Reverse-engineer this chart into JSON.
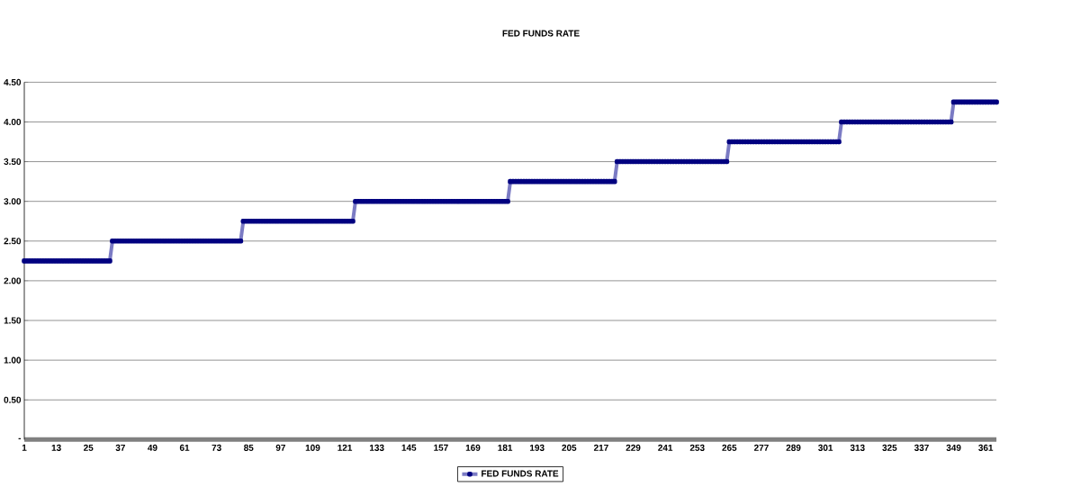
{
  "chart_data": {
    "type": "line",
    "title": "FED FUNDS RATE",
    "x": [
      1,
      2,
      3,
      4,
      5,
      6,
      7,
      8,
      9,
      10,
      11,
      12,
      13,
      14,
      15,
      16,
      17,
      18,
      19,
      20,
      21,
      22,
      23,
      24,
      25,
      26,
      27,
      28,
      29,
      30,
      31,
      32,
      33,
      34,
      35,
      36,
      37,
      38,
      39,
      40,
      41,
      42,
      43,
      44,
      45,
      46,
      47,
      48,
      49,
      50,
      51,
      52,
      53,
      54,
      55,
      56,
      57,
      58,
      59,
      60,
      61,
      62,
      63,
      64,
      65,
      66,
      67,
      68,
      69,
      70,
      71,
      72,
      73,
      74,
      75,
      76,
      77,
      78,
      79,
      80,
      81,
      82,
      83,
      84,
      85,
      86,
      87,
      88,
      89,
      90,
      91,
      92,
      93,
      94,
      95,
      96,
      97,
      98,
      99,
      100,
      101,
      102,
      103,
      104,
      105,
      106,
      107,
      108,
      109,
      110,
      111,
      112,
      113,
      114,
      115,
      116,
      117,
      118,
      119,
      120,
      121,
      122,
      123,
      124,
      125,
      126,
      127,
      128,
      129,
      130,
      131,
      132,
      133,
      134,
      135,
      136,
      137,
      138,
      139,
      140,
      141,
      142,
      143,
      144,
      145,
      146,
      147,
      148,
      149,
      150,
      151,
      152,
      153,
      154,
      155,
      156,
      157,
      158,
      159,
      160,
      161,
      162,
      163,
      164,
      165,
      166,
      167,
      168,
      169,
      170,
      171,
      172,
      173,
      174,
      175,
      176,
      177,
      178,
      179,
      180,
      181,
      182,
      183,
      184,
      185,
      186,
      187,
      188,
      189,
      190,
      191,
      192,
      193,
      194,
      195,
      196,
      197,
      198,
      199,
      200,
      201,
      202,
      203,
      204,
      205,
      206,
      207,
      208,
      209,
      210,
      211,
      212,
      213,
      214,
      215,
      216,
      217,
      218,
      219,
      220,
      221,
      222,
      223,
      224,
      225,
      226,
      227,
      228,
      229,
      230,
      231,
      232,
      233,
      234,
      235,
      236,
      237,
      238,
      239,
      240,
      241,
      242,
      243,
      244,
      245,
      246,
      247,
      248,
      249,
      250,
      251,
      252,
      253,
      254,
      255,
      256,
      257,
      258,
      259,
      260,
      261,
      262,
      263,
      264,
      265,
      266,
      267,
      268,
      269,
      270,
      271,
      272,
      273,
      274,
      275,
      276,
      277,
      278,
      279,
      280,
      281,
      282,
      283,
      284,
      285,
      286,
      287,
      288,
      289,
      290,
      291,
      292,
      293,
      294,
      295,
      296,
      297,
      298,
      299,
      300,
      301,
      302,
      303,
      304,
      305,
      306,
      307,
      308,
      309,
      310,
      311,
      312,
      313,
      314,
      315,
      316,
      317,
      318,
      319,
      320,
      321,
      322,
      323,
      324,
      325,
      326,
      327,
      328,
      329,
      330,
      331,
      332,
      333,
      334,
      335,
      336,
      337,
      338,
      339,
      340,
      341,
      342,
      343,
      344,
      345,
      346,
      347,
      348,
      349,
      350,
      351,
      352,
      353,
      354,
      355,
      356,
      357,
      358,
      359,
      360,
      361,
      362,
      363,
      364,
      365
    ],
    "series": [
      {
        "name": "FED FUNDS RATE",
        "color": "#7b7bc4",
        "values": [
          2.25,
          2.25,
          2.25,
          2.25,
          2.25,
          2.25,
          2.25,
          2.25,
          2.25,
          2.25,
          2.25,
          2.25,
          2.25,
          2.25,
          2.25,
          2.25,
          2.25,
          2.25,
          2.25,
          2.25,
          2.25,
          2.25,
          2.25,
          2.25,
          2.25,
          2.25,
          2.25,
          2.25,
          2.25,
          2.25,
          2.25,
          2.25,
          2.25,
          2.5,
          2.5,
          2.5,
          2.5,
          2.5,
          2.5,
          2.5,
          2.5,
          2.5,
          2.5,
          2.5,
          2.5,
          2.5,
          2.5,
          2.5,
          2.5,
          2.5,
          2.5,
          2.5,
          2.5,
          2.5,
          2.5,
          2.5,
          2.5,
          2.5,
          2.5,
          2.5,
          2.5,
          2.5,
          2.5,
          2.5,
          2.5,
          2.5,
          2.5,
          2.5,
          2.5,
          2.5,
          2.5,
          2.5,
          2.5,
          2.5,
          2.5,
          2.5,
          2.5,
          2.5,
          2.5,
          2.5,
          2.5,
          2.5,
          2.75,
          2.75,
          2.75,
          2.75,
          2.75,
          2.75,
          2.75,
          2.75,
          2.75,
          2.75,
          2.75,
          2.75,
          2.75,
          2.75,
          2.75,
          2.75,
          2.75,
          2.75,
          2.75,
          2.75,
          2.75,
          2.75,
          2.75,
          2.75,
          2.75,
          2.75,
          2.75,
          2.75,
          2.75,
          2.75,
          2.75,
          2.75,
          2.75,
          2.75,
          2.75,
          2.75,
          2.75,
          2.75,
          2.75,
          2.75,
          2.75,
          2.75,
          3,
          3,
          3,
          3,
          3,
          3,
          3,
          3,
          3,
          3,
          3,
          3,
          3,
          3,
          3,
          3,
          3,
          3,
          3,
          3,
          3,
          3,
          3,
          3,
          3,
          3,
          3,
          3,
          3,
          3,
          3,
          3,
          3,
          3,
          3,
          3,
          3,
          3,
          3,
          3,
          3,
          3,
          3,
          3,
          3,
          3,
          3,
          3,
          3,
          3,
          3,
          3,
          3,
          3,
          3,
          3,
          3,
          3,
          3.25,
          3.25,
          3.25,
          3.25,
          3.25,
          3.25,
          3.25,
          3.25,
          3.25,
          3.25,
          3.25,
          3.25,
          3.25,
          3.25,
          3.25,
          3.25,
          3.25,
          3.25,
          3.25,
          3.25,
          3.25,
          3.25,
          3.25,
          3.25,
          3.25,
          3.25,
          3.25,
          3.25,
          3.25,
          3.25,
          3.25,
          3.25,
          3.25,
          3.25,
          3.25,
          3.25,
          3.25,
          3.25,
          3.25,
          3.25,
          3.5,
          3.5,
          3.5,
          3.5,
          3.5,
          3.5,
          3.5,
          3.5,
          3.5,
          3.5,
          3.5,
          3.5,
          3.5,
          3.5,
          3.5,
          3.5,
          3.5,
          3.5,
          3.5,
          3.5,
          3.5,
          3.5,
          3.5,
          3.5,
          3.5,
          3.5,
          3.5,
          3.5,
          3.5,
          3.5,
          3.5,
          3.5,
          3.5,
          3.5,
          3.5,
          3.5,
          3.5,
          3.5,
          3.5,
          3.5,
          3.5,
          3.5,
          3.75,
          3.75,
          3.75,
          3.75,
          3.75,
          3.75,
          3.75,
          3.75,
          3.75,
          3.75,
          3.75,
          3.75,
          3.75,
          3.75,
          3.75,
          3.75,
          3.75,
          3.75,
          3.75,
          3.75,
          3.75,
          3.75,
          3.75,
          3.75,
          3.75,
          3.75,
          3.75,
          3.75,
          3.75,
          3.75,
          3.75,
          3.75,
          3.75,
          3.75,
          3.75,
          3.75,
          3.75,
          3.75,
          3.75,
          3.75,
          3.75,
          3.75,
          4,
          4,
          4,
          4,
          4,
          4,
          4,
          4,
          4,
          4,
          4,
          4,
          4,
          4,
          4,
          4,
          4,
          4,
          4,
          4,
          4,
          4,
          4,
          4,
          4,
          4,
          4,
          4,
          4,
          4,
          4,
          4,
          4,
          4,
          4,
          4,
          4,
          4,
          4,
          4,
          4,
          4,
          4.25,
          4.25,
          4.25,
          4.25,
          4.25,
          4.25,
          4.25,
          4.25,
          4.25,
          4.25,
          4.25,
          4.25,
          4.25,
          4.25,
          4.25,
          4.25,
          4.25
        ]
      }
    ],
    "xlim": [
      1,
      365
    ],
    "xticks": [
      1,
      13,
      25,
      37,
      49,
      61,
      73,
      85,
      97,
      109,
      121,
      133,
      145,
      157,
      169,
      181,
      193,
      205,
      217,
      229,
      241,
      253,
      265,
      277,
      289,
      301,
      313,
      325,
      337,
      349,
      361
    ],
    "ylim": [
      0,
      4.5
    ],
    "yticks": [
      {
        "value": 0,
        "label": "-"
      },
      {
        "value": 0.5,
        "label": "0.50"
      },
      {
        "value": 1,
        "label": "1.00"
      },
      {
        "value": 1.5,
        "label": "1.50"
      },
      {
        "value": 2,
        "label": "2.00"
      },
      {
        "value": 2.5,
        "label": "2.50"
      },
      {
        "value": 3,
        "label": "3.00"
      },
      {
        "value": 3.5,
        "label": "3.50"
      },
      {
        "value": 4,
        "label": "4.00"
      },
      {
        "value": 4.5,
        "label": "4.50"
      }
    ],
    "grid": "y",
    "legend": "bottom",
    "marker": "square",
    "line_style": "solid"
  }
}
